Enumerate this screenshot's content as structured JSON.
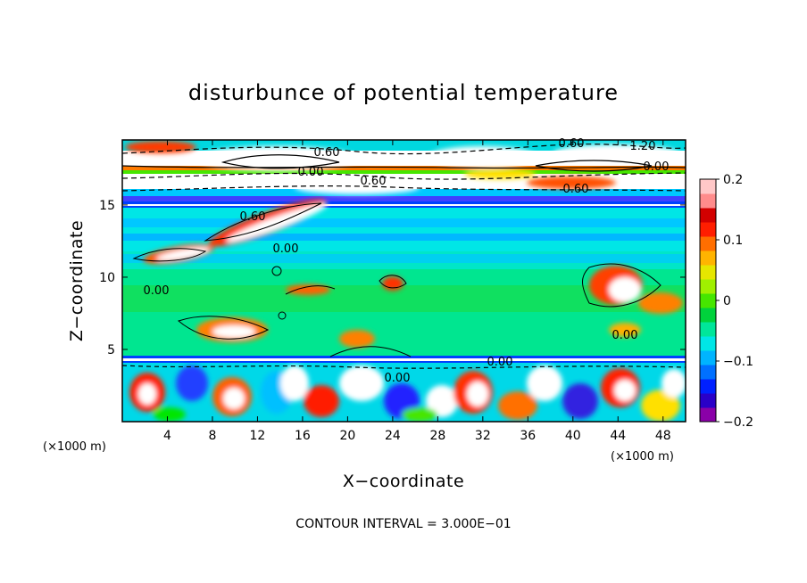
{
  "chart_data": {
    "type": "heatmap",
    "title": "disturbunce of potential temperature",
    "xlabel": "X−coordinate",
    "ylabel": "Z−coordinate",
    "x_unit": "(×1000 m)",
    "y_unit": "(×1000 m)",
    "xlim": [
      0,
      50
    ],
    "ylim": [
      0,
      19.5
    ],
    "x_ticks": [
      4,
      8,
      12,
      16,
      20,
      24,
      28,
      32,
      36,
      40,
      44,
      48
    ],
    "y_ticks": [
      5,
      10,
      15
    ],
    "colorbar": {
      "min": -0.2,
      "max": 0.2,
      "ticks": [
        0.2,
        0.1,
        0,
        -0.1,
        -0.2
      ],
      "tick_labels": [
        "0.2",
        "0.1",
        "0",
        "−0.1",
        "−0.2"
      ],
      "colors": [
        "#8a00a8",
        "#2a00c8",
        "#0020ff",
        "#0070ff",
        "#00b4ff",
        "#00e6e6",
        "#00e69a",
        "#00d23c",
        "#46e600",
        "#a0f000",
        "#e6e600",
        "#ffb400",
        "#ff6e00",
        "#ff1e00",
        "#d20000",
        "#ff8c8c",
        "#ffc8c8"
      ]
    },
    "contour_interval": "3.000E−01",
    "contour_labels": [
      "0.60",
      "0.60",
      "1.20",
      "0.00",
      "0.60",
      "0.00",
      "0.60",
      "0.60",
      "0.00",
      "0.00",
      "0.00",
      "0.00",
      "0.00"
    ],
    "grid": false
  },
  "footer": {
    "contour_text": "CONTOUR INTERVAL = 3.000E−01"
  }
}
